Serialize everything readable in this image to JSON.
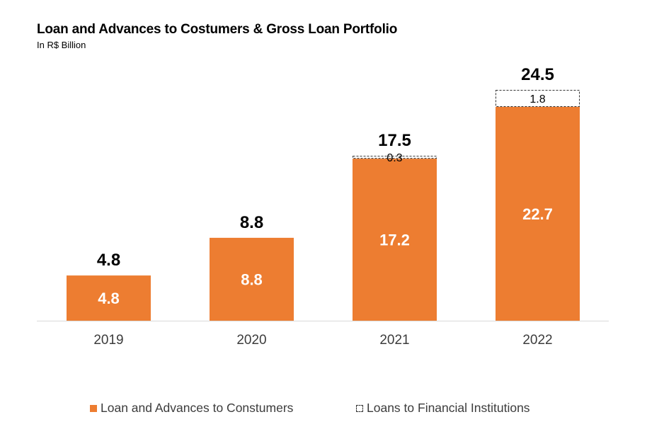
{
  "title": "Loan and Advances to Costumers & Gross Loan Portfolio",
  "subtitle": "In R$ Billion",
  "colors": {
    "loan": "#ED7D31",
    "fi_fill": "#FFFFFF",
    "fi_border": "#333333",
    "axis": "#D9D9D9"
  },
  "legend": {
    "loan_label": "Loan and Advances to Constumers",
    "fi_label": "Loans to Financial Institutions"
  },
  "chart_data": {
    "type": "bar",
    "stacked": true,
    "title": "Loan and Advances to Costumers & Gross Loan Portfolio",
    "subtitle": "In R$ Billion",
    "categories": [
      "2019",
      "2020",
      "2021",
      "2022"
    ],
    "series": [
      {
        "name": "Loan and Advances to Constumers",
        "values": [
          4.8,
          8.8,
          17.2,
          22.7
        ],
        "labels": [
          "4.8",
          "8.8",
          "17.2",
          "22.7"
        ]
      },
      {
        "name": "Loans to Financial Institutions",
        "values": [
          0,
          0,
          0.3,
          1.8
        ],
        "labels": [
          "",
          "",
          "0.3",
          "1.8"
        ]
      }
    ],
    "totals": [
      4.8,
      8.8,
      17.5,
      24.5
    ],
    "total_labels": [
      "4.8",
      "8.8",
      "17.5",
      "24.5"
    ],
    "ylim": [
      0,
      24.5
    ],
    "xlabel": "",
    "ylabel": "",
    "grid": false,
    "legend_position": "bottom"
  }
}
